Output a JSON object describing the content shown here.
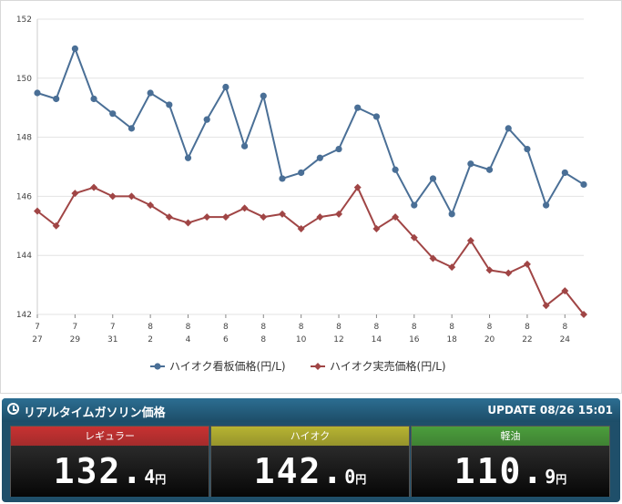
{
  "chart_data": {
    "type": "line",
    "x": [
      "7/27",
      "7/28",
      "7/29",
      "7/30",
      "7/31",
      "8/1",
      "8/2",
      "8/3",
      "8/4",
      "8/5",
      "8/6",
      "8/7",
      "8/8",
      "8/9",
      "8/10",
      "8/11",
      "8/12",
      "8/13",
      "8/14",
      "8/15",
      "8/16",
      "8/17",
      "8/18",
      "8/19",
      "8/20",
      "8/21",
      "8/22",
      "8/23",
      "8/24",
      "8/25"
    ],
    "tick_labels": [
      {
        "month": "7",
        "day": "27",
        "index": 0
      },
      {
        "month": "7",
        "day": "29",
        "index": 2
      },
      {
        "month": "7",
        "day": "31",
        "index": 4
      },
      {
        "month": "8",
        "day": "2",
        "index": 6
      },
      {
        "month": "8",
        "day": "4",
        "index": 8
      },
      {
        "month": "8",
        "day": "6",
        "index": 10
      },
      {
        "month": "8",
        "day": "8",
        "index": 12
      },
      {
        "month": "8",
        "day": "10",
        "index": 14
      },
      {
        "month": "8",
        "day": "12",
        "index": 16
      },
      {
        "month": "8",
        "day": "14",
        "index": 18
      },
      {
        "month": "8",
        "day": "16",
        "index": 20
      },
      {
        "month": "8",
        "day": "18",
        "index": 22
      },
      {
        "month": "8",
        "day": "20",
        "index": 24
      },
      {
        "month": "8",
        "day": "22",
        "index": 26
      },
      {
        "month": "8",
        "day": "24",
        "index": 28
      }
    ],
    "series": [
      {
        "name": "ハイオク看板価格(円/L)",
        "color": "#4a6f96",
        "marker": "circle",
        "values": [
          149.5,
          149.3,
          151.0,
          149.3,
          148.8,
          148.3,
          149.5,
          149.1,
          147.3,
          148.6,
          149.7,
          147.7,
          149.4,
          146.6,
          146.8,
          147.3,
          147.6,
          149.0,
          148.7,
          146.9,
          145.7,
          146.6,
          145.4,
          147.1,
          146.9,
          148.3,
          147.6,
          145.7,
          146.8,
          146.4
        ]
      },
      {
        "name": "ハイオク実売価格(円/L)",
        "color": "#a04545",
        "marker": "diamond",
        "values": [
          145.5,
          145.0,
          146.1,
          146.3,
          146.0,
          146.0,
          145.7,
          145.3,
          145.1,
          145.3,
          145.3,
          145.6,
          145.3,
          145.4,
          144.9,
          145.3,
          145.4,
          146.3,
          144.9,
          145.3,
          144.6,
          143.9,
          143.6,
          144.5,
          143.5,
          143.4,
          143.7,
          142.3,
          142.8,
          142.0
        ]
      }
    ],
    "yticks": [
      142,
      144,
      146,
      148,
      150,
      152
    ],
    "ylim": [
      142,
      152
    ],
    "grid": "horizontal",
    "legend_position": "bottom-center"
  },
  "price_panel": {
    "title": "リアルタイムガソリン価格",
    "update": "UPDATE 08/26 15:01",
    "fuels": [
      {
        "name": "レギュラー",
        "price_int": "132.",
        "price_dec": "4",
        "unit": "円",
        "color": "#c83232"
      },
      {
        "name": "ハイオク",
        "price_int": "142.",
        "price_dec": "0",
        "unit": "円",
        "color": "#b7b432"
      },
      {
        "name": "軽油",
        "price_int": "110.",
        "price_dec": "9",
        "unit": "円",
        "color": "#4b9e3c"
      }
    ]
  }
}
